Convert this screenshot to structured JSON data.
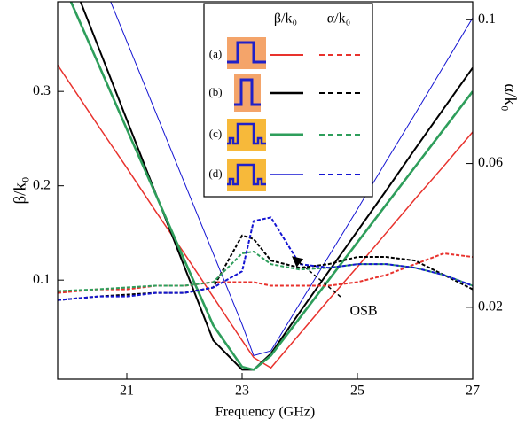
{
  "chart_data": {
    "type": "line",
    "x_label": "Frequency (GHz)",
    "y_label": "β/k₀",
    "y2_label": "α/k₀",
    "annotation": "OSB",
    "legend_headers": [
      "β/k₀",
      "α/k₀"
    ],
    "x": [
      19.8,
      20.5,
      21,
      21.5,
      22,
      22.5,
      23,
      23.2,
      23.5,
      24,
      24.5,
      25,
      25.5,
      26,
      26.5,
      27
    ],
    "xlim": [
      19.8,
      27
    ],
    "xticks": [
      21,
      23,
      25,
      27
    ],
    "ylim": [
      -0.005,
      0.395
    ],
    "yticks": [
      0.1,
      0.2,
      0.3
    ],
    "y2lim": [
      0,
      0.105
    ],
    "y2ticks": [
      0.02,
      0.06,
      0.1
    ],
    "grid": false,
    "series": [
      {
        "name": "(a)",
        "color": "#e8322d",
        "values": [
          0.328,
          0.264,
          0.219,
          0.173,
          0.128,
          0.082,
          0.036,
          0.018,
          0.007,
          0.043,
          0.079,
          0.114,
          0.15,
          0.186,
          0.221,
          0.257
        ]
      },
      {
        "name": "(b)",
        "color": "#000000",
        "values": [
          0.457,
          0.348,
          0.27,
          0.192,
          0.114,
          0.036,
          0.005,
          0.005,
          0.022,
          0.066,
          0.109,
          0.152,
          0.195,
          0.239,
          0.282,
          0.325
        ]
      },
      {
        "name": "(c)",
        "color": "#2e9e5b",
        "values": [
          0.427,
          0.33,
          0.26,
          0.191,
          0.121,
          0.052,
          0.008,
          0.005,
          0.02,
          0.06,
          0.1,
          0.14,
          0.18,
          0.22,
          0.26,
          0.3
        ]
      },
      {
        "name": "(d)",
        "color": "#1414d2",
        "values": [
          0.53,
          0.428,
          0.353,
          0.278,
          0.203,
          0.128,
          0.053,
          0.02,
          0.025,
          0.075,
          0.125,
          0.175,
          0.226,
          0.276,
          0.327,
          0.378
        ]
      },
      {
        "color": "#e8322d",
        "axis": "y2",
        "values": [
          0.024,
          0.025,
          0.025,
          0.026,
          0.026,
          0.027,
          0.027,
          0.027,
          0.026,
          0.026,
          0.026,
          0.027,
          0.029,
          0.032,
          0.035,
          0.034
        ]
      },
      {
        "color": "#000000",
        "axis": "y2",
        "values": [
          0.022,
          0.023,
          0.0235,
          0.024,
          0.024,
          0.0255,
          0.04,
          0.039,
          0.033,
          0.031,
          0.032,
          0.034,
          0.034,
          0.033,
          0.029,
          0.025
        ]
      },
      {
        "color": "#2e9e5b",
        "axis": "y2",
        "values": [
          0.0245,
          0.025,
          0.0255,
          0.026,
          0.026,
          0.027,
          0.035,
          0.0355,
          0.032,
          0.0305,
          0.031,
          0.032,
          0.032,
          0.031,
          0.029,
          0.026
        ]
      },
      {
        "color": "#1414d2",
        "axis": "y2",
        "values": [
          0.022,
          0.023,
          0.023,
          0.024,
          0.024,
          0.0255,
          0.03,
          0.044,
          0.045,
          0.032,
          0.031,
          0.032,
          0.032,
          0.031,
          0.029,
          0.026
        ]
      }
    ]
  }
}
